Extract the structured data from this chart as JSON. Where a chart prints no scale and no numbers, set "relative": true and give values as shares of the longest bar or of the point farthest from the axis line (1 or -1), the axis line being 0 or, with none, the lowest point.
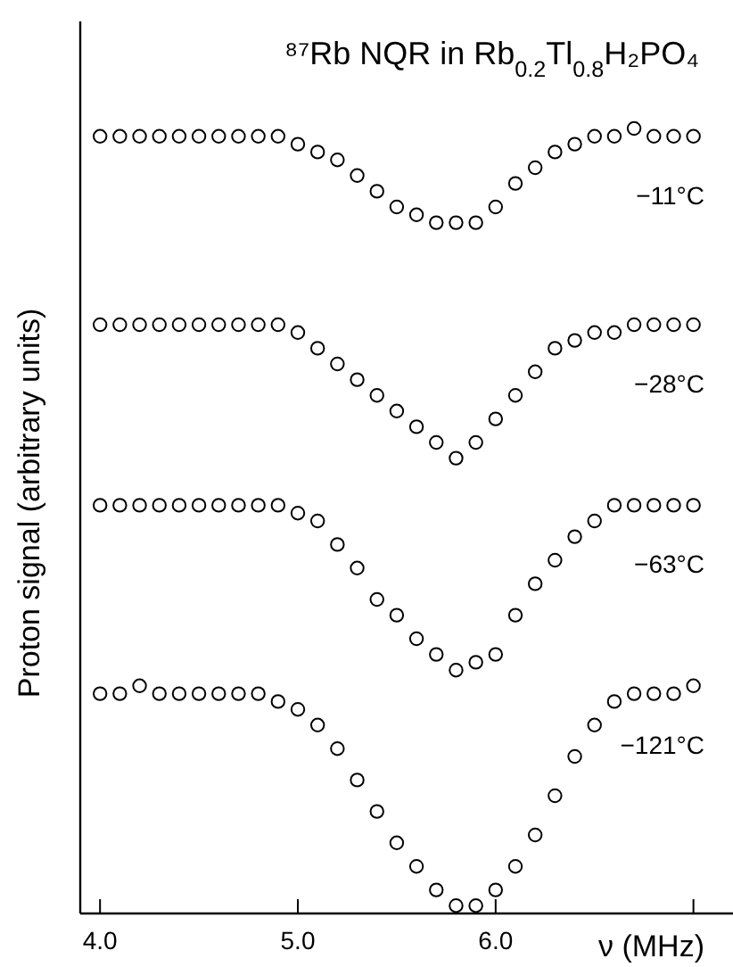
{
  "chart_data": {
    "type": "scatter",
    "title": "⁸⁷Rb  NQR  in Rb$_{0.2}$Tl$_{0.8}$H₂PO₄",
    "xlabel": "ν (MHz)",
    "ylabel": "Proton signal (arbitrary units)",
    "relative": true,
    "marker": "circle",
    "grid": false,
    "legend": false,
    "x": [
      4.0,
      4.1,
      4.2,
      4.3,
      4.4,
      4.5,
      4.6,
      4.7,
      4.8,
      4.9,
      5.0,
      5.1,
      5.2,
      5.3,
      5.4,
      5.5,
      5.6,
      5.7,
      5.8,
      5.9,
      6.0,
      6.1,
      6.2,
      6.3,
      6.4,
      6.5,
      6.6,
      6.7,
      6.8,
      6.9,
      7.0
    ],
    "xlim": [
      3.9,
      7.2
    ],
    "xticks": [
      {
        "value": 4,
        "label": "4.0"
      },
      {
        "value": 5,
        "label": "5.0"
      },
      {
        "value": 6,
        "label": "6.0"
      },
      {
        "value": 7,
        "label": null
      }
    ],
    "series": [
      {
        "name": "−11°C",
        "color": "#000000",
        "values": [
          0.99,
          0.99,
          0.99,
          0.99,
          0.99,
          0.99,
          0.99,
          0.99,
          0.99,
          0.99,
          0.98,
          0.97,
          0.96,
          0.94,
          0.92,
          0.9,
          0.89,
          0.88,
          0.88,
          0.88,
          0.9,
          0.93,
          0.95,
          0.97,
          0.98,
          0.99,
          0.99,
          1.0,
          0.99,
          0.99,
          0.99
        ]
      },
      {
        "name": "−28°C",
        "color": "#000000",
        "values": [
          0.75,
          0.75,
          0.75,
          0.75,
          0.75,
          0.75,
          0.75,
          0.75,
          0.75,
          0.75,
          0.74,
          0.72,
          0.7,
          0.68,
          0.66,
          0.64,
          0.62,
          0.6,
          0.58,
          0.6,
          0.63,
          0.66,
          0.69,
          0.72,
          0.73,
          0.74,
          0.74,
          0.75,
          0.75,
          0.75,
          0.75
        ]
      },
      {
        "name": "−63°C",
        "color": "#000000",
        "values": [
          0.52,
          0.52,
          0.52,
          0.52,
          0.52,
          0.52,
          0.52,
          0.52,
          0.52,
          0.52,
          0.51,
          0.5,
          0.47,
          0.44,
          0.4,
          0.38,
          0.35,
          0.33,
          0.31,
          0.32,
          0.33,
          0.38,
          0.42,
          0.45,
          0.48,
          0.5,
          0.52,
          0.52,
          0.52,
          0.52,
          0.52
        ]
      },
      {
        "name": "−121°C",
        "color": "#000000",
        "values": [
          0.28,
          0.28,
          0.29,
          0.28,
          0.28,
          0.28,
          0.28,
          0.28,
          0.28,
          0.27,
          0.26,
          0.24,
          0.21,
          0.17,
          0.13,
          0.09,
          0.06,
          0.03,
          0.01,
          0.01,
          0.03,
          0.06,
          0.1,
          0.15,
          0.2,
          0.24,
          0.27,
          0.28,
          0.28,
          0.28,
          0.29
        ]
      }
    ]
  }
}
